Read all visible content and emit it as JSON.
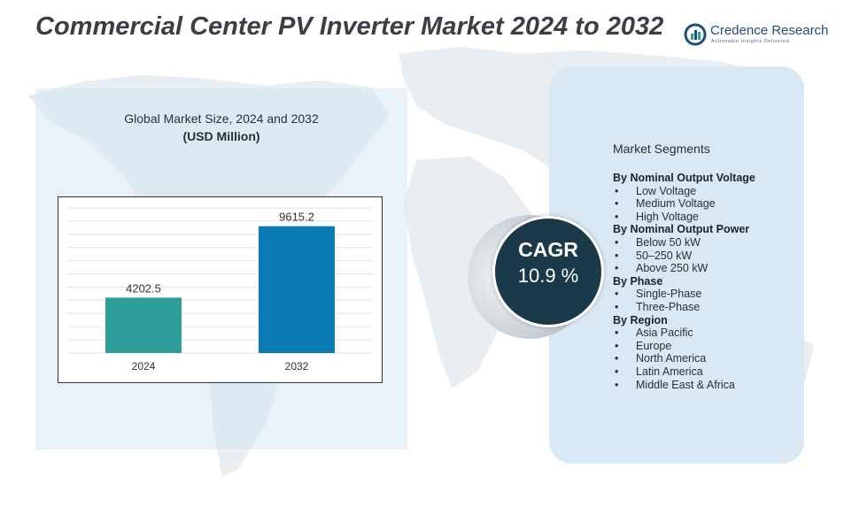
{
  "header": {
    "title": "Commercial Center PV Inverter Market 2024 to 2032"
  },
  "logo": {
    "name": "Credence Research",
    "tagline": "Actionable Insights Delivered",
    "color": "#1f4e79"
  },
  "chart_data": {
    "type": "bar",
    "title": "Global Market Size, 2024 and 2032",
    "subtitle": "(USD Million)",
    "categories": [
      "2024",
      "2032"
    ],
    "values": [
      4202.5,
      9615.2
    ],
    "value_labels": [
      "4202.5",
      "9615.2"
    ],
    "bar_colors": [
      "#2e9e9a",
      "#0b7bb5"
    ],
    "xlabel": "",
    "ylabel": "",
    "ylim": [
      0,
      11000
    ],
    "grid": true,
    "legend": "none"
  },
  "cagr": {
    "label": "CAGR",
    "value": "10.9  %",
    "color": "#1a3a4a"
  },
  "segments": {
    "heading": "Market Segments",
    "groups": [
      {
        "title": "By Nominal Output Voltage",
        "items": [
          "Low Voltage",
          "Medium Voltage",
          "High Voltage"
        ]
      },
      {
        "title": "By Nominal Output Power",
        "items": [
          "Below 50 kW",
          "50–250 kW",
          "Above 250 kW"
        ]
      },
      {
        "title": "By Phase",
        "items": [
          "Single-Phase",
          "Three-Phase"
        ]
      },
      {
        "title": "By Region",
        "items": [
          "Asia Pacific",
          "Europe",
          "North America",
          "Latin America",
          "Middle East & Africa"
        ]
      }
    ]
  }
}
